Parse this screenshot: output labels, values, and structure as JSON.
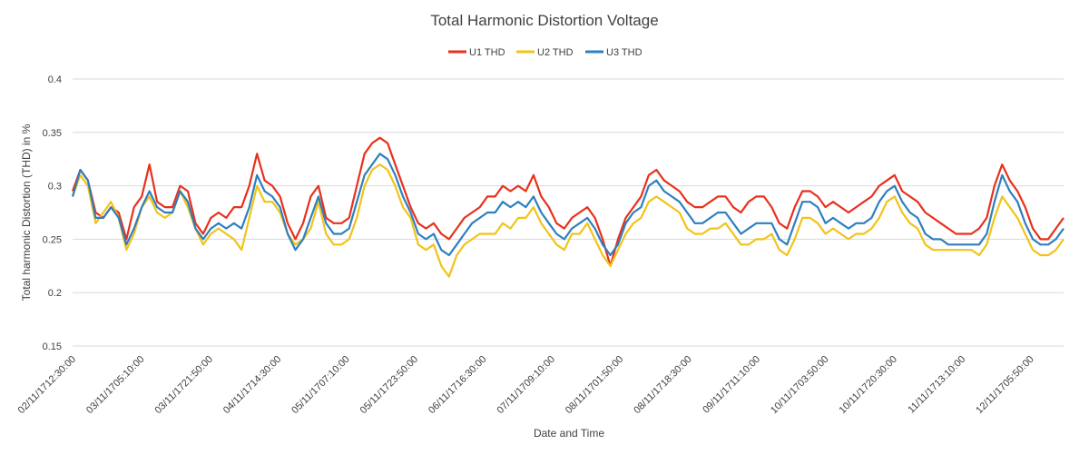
{
  "chart_data": {
    "type": "line",
    "title": "Total Harmonic Distortion Voltage",
    "xlabel": "Date and Time",
    "ylabel": "Total harmonic Distortion (THD) in %",
    "ylim": [
      0.15,
      0.4
    ],
    "yticks": [
      "0.15",
      "0.2",
      "0.25",
      "0.3",
      "0.35",
      "0.4"
    ],
    "grid": true,
    "legend_position": "top",
    "x_tick_labels": [
      "02/11/1712:30:00",
      "03/11/1705:10:00",
      "03/11/1721:50:00",
      "04/11/1714:30:00",
      "05/11/1707:10:00",
      "05/11/1723:50:00",
      "06/11/1716:30:00",
      "07/11/1709:10:00",
      "08/11/1701:50:00",
      "08/11/1718:30:00",
      "09/11/1711:10:00",
      "10/11/1703:50:00",
      "10/11/1720:30:00",
      "11/11/1713:10:00",
      "12/11/1705:50:00"
    ],
    "series": [
      {
        "name": "U1 THD",
        "color": "#e8301c",
        "values": [
          0.295,
          0.315,
          0.305,
          0.275,
          0.27,
          0.28,
          0.275,
          0.25,
          0.28,
          0.29,
          0.32,
          0.285,
          0.28,
          0.28,
          0.3,
          0.295,
          0.265,
          0.255,
          0.27,
          0.275,
          0.27,
          0.28,
          0.28,
          0.3,
          0.33,
          0.305,
          0.3,
          0.29,
          0.265,
          0.25,
          0.265,
          0.29,
          0.3,
          0.27,
          0.265,
          0.265,
          0.27,
          0.3,
          0.33,
          0.34,
          0.345,
          0.34,
          0.32,
          0.3,
          0.28,
          0.265,
          0.26,
          0.265,
          0.255,
          0.25,
          0.26,
          0.27,
          0.275,
          0.28,
          0.29,
          0.29,
          0.3,
          0.295,
          0.3,
          0.295,
          0.31,
          0.29,
          0.28,
          0.265,
          0.26,
          0.27,
          0.275,
          0.28,
          0.27,
          0.25,
          0.225,
          0.25,
          0.27,
          0.28,
          0.29,
          0.31,
          0.315,
          0.305,
          0.3,
          0.295,
          0.285,
          0.28,
          0.28,
          0.285,
          0.29,
          0.29,
          0.28,
          0.275,
          0.285,
          0.29,
          0.29,
          0.28,
          0.265,
          0.26,
          0.28,
          0.295,
          0.295,
          0.29,
          0.28,
          0.285,
          0.28,
          0.275,
          0.28,
          0.285,
          0.29,
          0.3,
          0.305,
          0.31,
          0.295,
          0.29,
          0.285,
          0.275,
          0.27,
          0.265,
          0.26,
          0.255,
          0.255,
          0.255,
          0.26,
          0.27,
          0.3,
          0.32,
          0.305,
          0.295,
          0.28,
          0.26,
          0.25,
          0.25,
          0.26,
          0.27
        ]
      },
      {
        "name": "U2 THD",
        "color": "#f2c318",
        "values": [
          0.29,
          0.31,
          0.3,
          0.265,
          0.275,
          0.285,
          0.27,
          0.24,
          0.255,
          0.28,
          0.29,
          0.275,
          0.27,
          0.275,
          0.295,
          0.28,
          0.26,
          0.245,
          0.255,
          0.26,
          0.255,
          0.25,
          0.24,
          0.27,
          0.3,
          0.285,
          0.285,
          0.275,
          0.255,
          0.245,
          0.25,
          0.26,
          0.285,
          0.255,
          0.245,
          0.245,
          0.25,
          0.27,
          0.3,
          0.315,
          0.32,
          0.315,
          0.3,
          0.28,
          0.27,
          0.245,
          0.24,
          0.245,
          0.225,
          0.215,
          0.235,
          0.245,
          0.25,
          0.255,
          0.255,
          0.255,
          0.265,
          0.26,
          0.27,
          0.27,
          0.28,
          0.265,
          0.255,
          0.245,
          0.24,
          0.255,
          0.255,
          0.265,
          0.25,
          0.235,
          0.225,
          0.24,
          0.255,
          0.265,
          0.27,
          0.285,
          0.29,
          0.285,
          0.28,
          0.275,
          0.26,
          0.255,
          0.255,
          0.26,
          0.26,
          0.265,
          0.255,
          0.245,
          0.245,
          0.25,
          0.25,
          0.255,
          0.24,
          0.235,
          0.25,
          0.27,
          0.27,
          0.265,
          0.255,
          0.26,
          0.255,
          0.25,
          0.255,
          0.255,
          0.26,
          0.27,
          0.285,
          0.29,
          0.275,
          0.265,
          0.26,
          0.245,
          0.24,
          0.24,
          0.24,
          0.24,
          0.24,
          0.24,
          0.235,
          0.245,
          0.27,
          0.29,
          0.28,
          0.27,
          0.255,
          0.24,
          0.235,
          0.235,
          0.24,
          0.25
        ]
      },
      {
        "name": "U3 THD",
        "color": "#2e7fbf",
        "values": [
          0.29,
          0.315,
          0.305,
          0.27,
          0.27,
          0.28,
          0.27,
          0.245,
          0.26,
          0.28,
          0.295,
          0.28,
          0.275,
          0.275,
          0.295,
          0.285,
          0.26,
          0.25,
          0.26,
          0.265,
          0.26,
          0.265,
          0.26,
          0.28,
          0.31,
          0.295,
          0.29,
          0.28,
          0.255,
          0.24,
          0.25,
          0.27,
          0.29,
          0.265,
          0.255,
          0.255,
          0.26,
          0.285,
          0.31,
          0.32,
          0.33,
          0.325,
          0.31,
          0.29,
          0.275,
          0.255,
          0.25,
          0.255,
          0.24,
          0.235,
          0.245,
          0.255,
          0.265,
          0.27,
          0.275,
          0.275,
          0.285,
          0.28,
          0.285,
          0.28,
          0.29,
          0.275,
          0.265,
          0.255,
          0.25,
          0.26,
          0.265,
          0.27,
          0.26,
          0.245,
          0.235,
          0.245,
          0.265,
          0.275,
          0.28,
          0.3,
          0.305,
          0.295,
          0.29,
          0.285,
          0.275,
          0.265,
          0.265,
          0.27,
          0.275,
          0.275,
          0.265,
          0.255,
          0.26,
          0.265,
          0.265,
          0.265,
          0.25,
          0.245,
          0.265,
          0.285,
          0.285,
          0.28,
          0.265,
          0.27,
          0.265,
          0.26,
          0.265,
          0.265,
          0.27,
          0.285,
          0.295,
          0.3,
          0.285,
          0.275,
          0.27,
          0.255,
          0.25,
          0.25,
          0.245,
          0.245,
          0.245,
          0.245,
          0.245,
          0.255,
          0.285,
          0.31,
          0.295,
          0.285,
          0.265,
          0.25,
          0.245,
          0.245,
          0.25,
          0.26
        ]
      }
    ]
  }
}
